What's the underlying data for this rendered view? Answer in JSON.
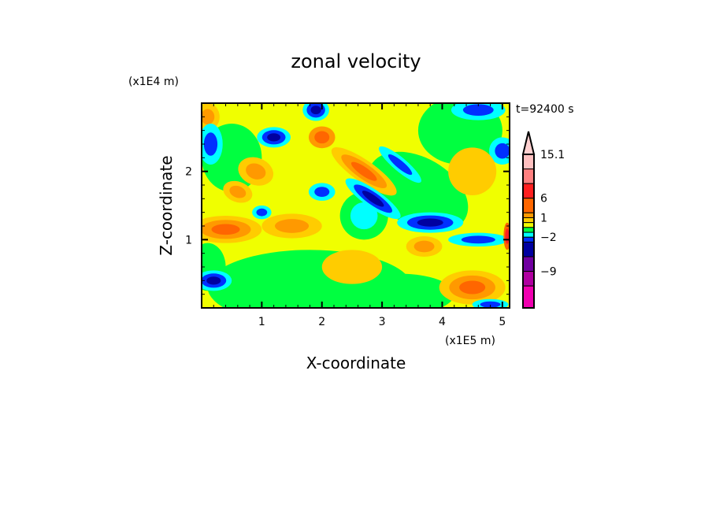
{
  "chart_data": {
    "type": "heatmap",
    "title": "zonal velocity",
    "xlabel": "X-coordinate",
    "ylabel": "Z-coordinate",
    "x_unit": "(x1E5 m)",
    "y_unit": "(x1E4 m)",
    "time_label": "t=92400 s",
    "xlim": [
      0,
      5.12
    ],
    "ylim": [
      0,
      3.0
    ],
    "xticks": [
      1,
      2,
      3,
      4,
      5
    ],
    "yticks": [
      1,
      2
    ],
    "colorbar": {
      "colors": [
        "#ffd0d0",
        "#ffc0c0",
        "#ff8080",
        "#ff2020",
        "#ff6600",
        "#ff9900",
        "#ffcc00",
        "#f0ff00",
        "#00ff40",
        "#00ffff",
        "#0030ff",
        "#0000a0",
        "#7000a0",
        "#b000a0",
        "#f000b0"
      ],
      "labels": [
        {
          "text": "15.1",
          "level": 1
        },
        {
          "text": "6",
          "level": 4
        },
        {
          "text": "1",
          "level": 6
        },
        {
          "text": "−2",
          "level": 10
        },
        {
          "text": "−9",
          "level": 13
        }
      ]
    },
    "palette": {
      "green": "#00ff40",
      "cyan": "#00ffff",
      "blue": "#0030ff",
      "navy": "#0000a0",
      "gold": "#ffcc00",
      "lorange": "#ff9900",
      "orange": "#ff6600",
      "red": "#ff2020",
      "yellow": "#f0ff00"
    },
    "background_level": "yellow",
    "features": [
      {
        "x": 1.8,
        "z": 0.3,
        "rx": 1.7,
        "rz": 0.55,
        "rot": 0,
        "levels": [
          "green"
        ]
      },
      {
        "x": 3.3,
        "z": 0.2,
        "rx": 0.9,
        "rz": 0.3,
        "rot": 0,
        "levels": [
          "green"
        ]
      },
      {
        "x": 0.1,
        "z": 0.6,
        "rx": 0.3,
        "rz": 0.35,
        "rot": 0,
        "levels": [
          "green"
        ]
      },
      {
        "x": 0.5,
        "z": 2.2,
        "rx": 0.5,
        "rz": 0.5,
        "rot": 0,
        "levels": [
          "green"
        ]
      },
      {
        "x": 2.7,
        "z": 1.35,
        "rx": 0.4,
        "rz": 0.35,
        "rot": 0,
        "levels": [
          "green",
          "cyan"
        ]
      },
      {
        "x": 3.6,
        "z": 1.7,
        "rx": 0.9,
        "rz": 0.5,
        "rot": 30,
        "levels": [
          "green"
        ]
      },
      {
        "x": 4.3,
        "z": 2.6,
        "rx": 0.7,
        "rz": 0.5,
        "rot": 0,
        "levels": [
          "green"
        ]
      },
      {
        "x": 0.1,
        "z": 2.8,
        "rx": 0.2,
        "rz": 0.2,
        "rot": 0,
        "levels": [
          "gold",
          "lorange"
        ]
      },
      {
        "x": 0.15,
        "z": 2.4,
        "rx": 0.2,
        "rz": 0.3,
        "rot": 0,
        "levels": [
          "cyan",
          "blue"
        ]
      },
      {
        "x": 0.4,
        "z": 1.15,
        "rx": 0.6,
        "rz": 0.2,
        "rot": 0,
        "levels": [
          "gold",
          "lorange",
          "orange"
        ]
      },
      {
        "x": 1.5,
        "z": 1.2,
        "rx": 0.5,
        "rz": 0.18,
        "rot": 0,
        "levels": [
          "gold",
          "lorange"
        ]
      },
      {
        "x": 0.9,
        "z": 2.0,
        "rx": 0.3,
        "rz": 0.2,
        "rot": 20,
        "levels": [
          "gold",
          "lorange"
        ]
      },
      {
        "x": 0.6,
        "z": 1.7,
        "rx": 0.25,
        "rz": 0.15,
        "rot": 20,
        "levels": [
          "gold",
          "lorange"
        ]
      },
      {
        "x": 2.7,
        "z": 2.0,
        "rx": 0.65,
        "rz": 0.16,
        "rot": 35,
        "levels": [
          "gold",
          "lorange",
          "orange"
        ]
      },
      {
        "x": 2.85,
        "z": 1.6,
        "rx": 0.55,
        "rz": 0.13,
        "rot": 35,
        "levels": [
          "cyan",
          "blue",
          "navy"
        ]
      },
      {
        "x": 3.3,
        "z": 2.1,
        "rx": 0.45,
        "rz": 0.1,
        "rot": 40,
        "levels": [
          "cyan",
          "blue"
        ]
      },
      {
        "x": 3.8,
        "z": 1.25,
        "rx": 0.55,
        "rz": 0.15,
        "rot": 0,
        "levels": [
          "cyan",
          "blue",
          "navy"
        ]
      },
      {
        "x": 4.6,
        "z": 1.0,
        "rx": 0.5,
        "rz": 0.1,
        "rot": 0,
        "levels": [
          "cyan",
          "blue"
        ]
      },
      {
        "x": 1.9,
        "z": 2.9,
        "rx": 0.22,
        "rz": 0.16,
        "rot": 0,
        "levels": [
          "cyan",
          "blue",
          "navy"
        ]
      },
      {
        "x": 1.2,
        "z": 2.5,
        "rx": 0.28,
        "rz": 0.15,
        "rot": 0,
        "levels": [
          "cyan",
          "blue",
          "navy"
        ]
      },
      {
        "x": 2.0,
        "z": 1.7,
        "rx": 0.22,
        "rz": 0.13,
        "rot": 0,
        "levels": [
          "cyan",
          "blue"
        ]
      },
      {
        "x": 1.0,
        "z": 1.4,
        "rx": 0.16,
        "rz": 0.1,
        "rot": 0,
        "levels": [
          "cyan",
          "blue"
        ]
      },
      {
        "x": 2.0,
        "z": 2.5,
        "rx": 0.22,
        "rz": 0.16,
        "rot": 0,
        "levels": [
          "lorange",
          "orange"
        ]
      },
      {
        "x": 5.0,
        "z": 2.3,
        "rx": 0.22,
        "rz": 0.2,
        "rot": 0,
        "levels": [
          "cyan",
          "blue"
        ]
      },
      {
        "x": 4.6,
        "z": 2.9,
        "rx": 0.45,
        "rz": 0.15,
        "rot": 0,
        "levels": [
          "cyan",
          "blue"
        ]
      },
      {
        "x": 0.2,
        "z": 0.4,
        "rx": 0.3,
        "rz": 0.15,
        "rot": 0,
        "levels": [
          "cyan",
          "blue",
          "navy"
        ]
      },
      {
        "x": 4.5,
        "z": 0.3,
        "rx": 0.55,
        "rz": 0.25,
        "rot": 0,
        "levels": [
          "gold",
          "lorange",
          "orange"
        ]
      },
      {
        "x": 2.5,
        "z": 0.6,
        "rx": 0.5,
        "rz": 0.25,
        "rot": 0,
        "levels": [
          "gold"
        ]
      },
      {
        "x": 3.7,
        "z": 0.9,
        "rx": 0.3,
        "rz": 0.15,
        "rot": 0,
        "levels": [
          "gold",
          "lorange"
        ]
      },
      {
        "x": 4.5,
        "z": 2.0,
        "rx": 0.4,
        "rz": 0.35,
        "rot": 0,
        "levels": [
          "gold"
        ]
      },
      {
        "x": 4.8,
        "z": 0.05,
        "rx": 0.3,
        "rz": 0.08,
        "rot": 0,
        "levels": [
          "cyan",
          "blue"
        ]
      },
      {
        "x": 5.08,
        "z": 1.05,
        "rx": 0.06,
        "rz": 0.2,
        "rot": 0,
        "levels": [
          "orange",
          "red"
        ]
      }
    ]
  }
}
